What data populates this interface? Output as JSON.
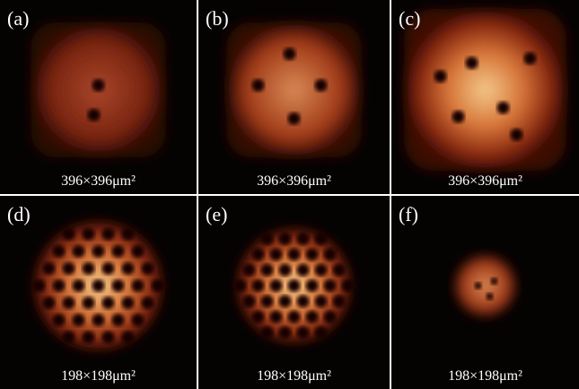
{
  "panels": [
    {
      "label": "(a)",
      "caption": "396×396μm²"
    },
    {
      "label": "(b)",
      "caption": "396×396μm²"
    },
    {
      "label": "(c)",
      "caption": "396×396μm²"
    },
    {
      "label": "(d)",
      "caption": "198×198μm²"
    },
    {
      "label": "(e)",
      "caption": "198×198μm²"
    },
    {
      "label": "(f)",
      "caption": "198×198μm²"
    }
  ]
}
